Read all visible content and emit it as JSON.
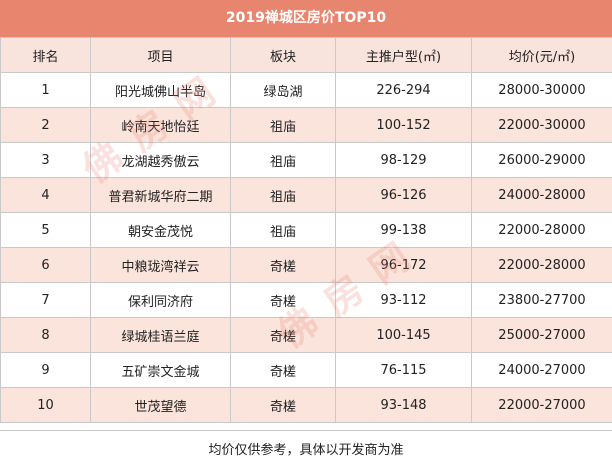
{
  "title": "2019禅城区房价TOP10",
  "columns": [
    "排名",
    "项目",
    "板块",
    "主推户型(㎡)",
    "均价(元/㎡)"
  ],
  "rows": [
    {
      "rank": "1",
      "project": "阳光城佛山半岛",
      "area": "绿岛湖",
      "size": "226-294",
      "price": "28000-30000"
    },
    {
      "rank": "2",
      "project": "岭南天地怡廷",
      "area": "祖庙",
      "size": "100-152",
      "price": "22000-30000"
    },
    {
      "rank": "3",
      "project": "龙湖越秀傲云",
      "area": "祖庙",
      "size": "98-129",
      "price": "26000-29000"
    },
    {
      "rank": "4",
      "project": "普君新城华府二期",
      "area": "祖庙",
      "size": "96-126",
      "price": "24000-28000"
    },
    {
      "rank": "5",
      "project": "朝安金茂悦",
      "area": "祖庙",
      "size": "99-138",
      "price": "22000-28000"
    },
    {
      "rank": "6",
      "project": "中粮珑湾祥云",
      "area": "奇槎",
      "size": "96-172",
      "price": "22000-28000"
    },
    {
      "rank": "7",
      "project": "保利同济府",
      "area": "奇槎",
      "size": "93-112",
      "price": "23800-27700"
    },
    {
      "rank": "8",
      "project": "绿城桂语兰庭",
      "area": "奇槎",
      "size": "100-145",
      "price": "25000-27000"
    },
    {
      "rank": "9",
      "project": "五矿崇文金城",
      "area": "奇槎",
      "size": "76-115",
      "price": "24000-27000"
    },
    {
      "rank": "10",
      "project": "世茂望德",
      "area": "奇槎",
      "size": "93-148",
      "price": "22000-27000"
    }
  ],
  "note": "均价仅供参考，具体以开发商为准",
  "watermark": "佛房网"
}
